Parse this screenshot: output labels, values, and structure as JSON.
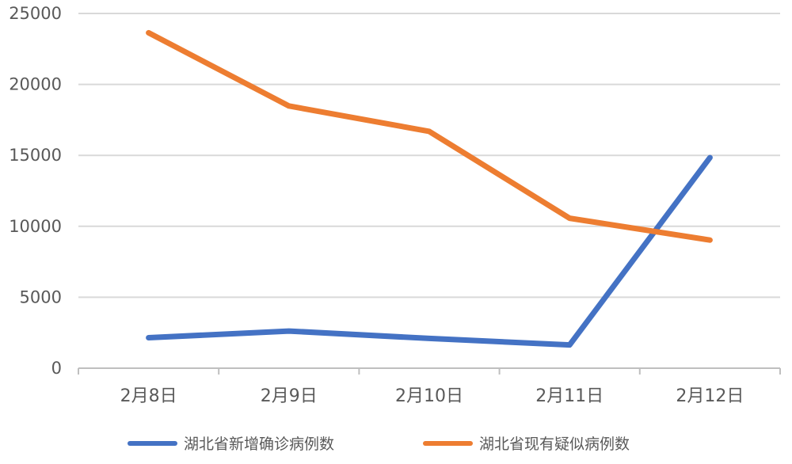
{
  "chart_data": {
    "type": "line",
    "title": "",
    "xlabel": "",
    "ylabel": "",
    "categories": [
      "2月8日",
      "2月9日",
      "2月10日",
      "2月11日",
      "2月12日"
    ],
    "series": [
      {
        "name": "湖北省新增确诊病例数",
        "color": "#4472C4",
        "values": [
          2147,
          2618,
          2097,
          1638,
          14840
        ]
      },
      {
        "name": "湖北省现有疑似病例数",
        "color": "#ED7D31",
        "values": [
          23638,
          18480,
          16687,
          10567,
          9028
        ]
      }
    ],
    "ylim": [
      0,
      25000
    ],
    "ytick_step": 5000,
    "ytick_labels": [
      "0",
      "5000",
      "10000",
      "15000",
      "20000",
      "25000"
    ],
    "grid": true,
    "legend_position": "bottom"
  },
  "colors": {
    "background": "#FFFFFF",
    "text": "#595959",
    "gridline": "#D9D9D9",
    "axis": "#BFBFBF"
  }
}
